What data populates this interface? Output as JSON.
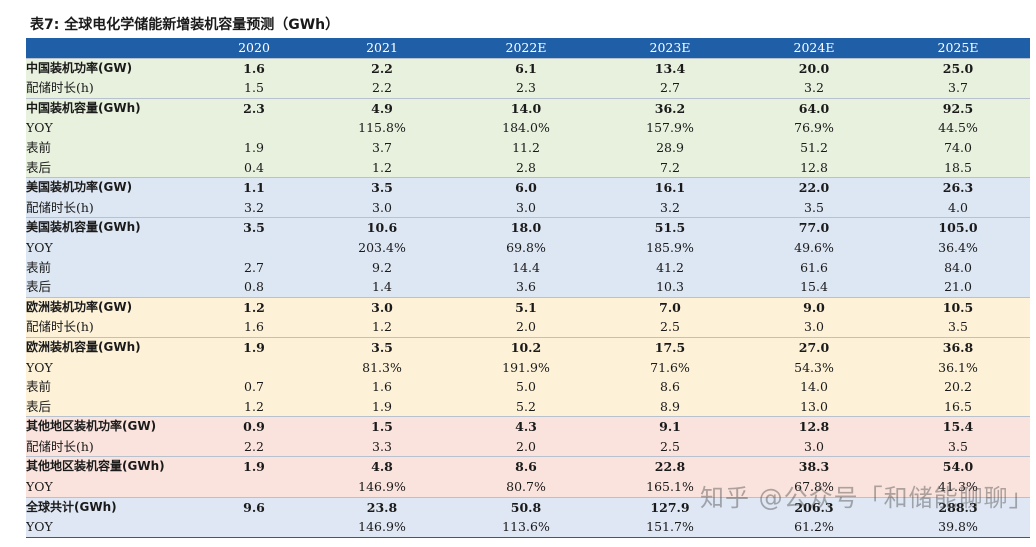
{
  "title": "表7: 全球电化学储能新增装机容量预测（GWh）",
  "columns": [
    "",
    "2020",
    "2021",
    "2022E",
    "2023E",
    "2024E",
    "2025E"
  ],
  "rows": [
    {
      "label": "中国装机功率(GW)",
      "values": [
        "1.6",
        "2.2",
        "6.1",
        "13.4",
        "20.0",
        "25.0"
      ]
    },
    {
      "label": "配储时长(h)",
      "values": [
        "1.5",
        "2.2",
        "2.3",
        "2.7",
        "3.2",
        "3.7"
      ]
    },
    {
      "label": "中国装机容量(GWh)",
      "values": [
        "2.3",
        "4.9",
        "14.0",
        "36.2",
        "64.0",
        "92.5"
      ]
    },
    {
      "label": "YOY",
      "values": [
        "",
        "115.8%",
        "184.0%",
        "157.9%",
        "76.9%",
        "44.5%"
      ]
    },
    {
      "label": "表前",
      "values": [
        "1.9",
        "3.7",
        "11.2",
        "28.9",
        "51.2",
        "74.0"
      ]
    },
    {
      "label": "表后",
      "values": [
        "0.4",
        "1.2",
        "2.8",
        "7.2",
        "12.8",
        "18.5"
      ]
    },
    {
      "label": "美国装机功率(GW)",
      "values": [
        "1.1",
        "3.5",
        "6.0",
        "16.1",
        "22.0",
        "26.3"
      ]
    },
    {
      "label": "配储时长(h)",
      "values": [
        "3.2",
        "3.0",
        "3.0",
        "3.2",
        "3.5",
        "4.0"
      ]
    },
    {
      "label": "美国装机容量(GWh)",
      "values": [
        "3.5",
        "10.6",
        "18.0",
        "51.5",
        "77.0",
        "105.0"
      ]
    },
    {
      "label": "YOY",
      "values": [
        "",
        "203.4%",
        "69.8%",
        "185.9%",
        "49.6%",
        "36.4%"
      ]
    },
    {
      "label": "表前",
      "values": [
        "2.7",
        "9.2",
        "14.4",
        "41.2",
        "61.6",
        "84.0"
      ]
    },
    {
      "label": "表后",
      "values": [
        "0.8",
        "1.4",
        "3.6",
        "10.3",
        "15.4",
        "21.0"
      ]
    },
    {
      "label": "欧洲装机功率(GW)",
      "values": [
        "1.2",
        "3.0",
        "5.1",
        "7.0",
        "9.0",
        "10.5"
      ]
    },
    {
      "label": "配储时长(h)",
      "values": [
        "1.6",
        "1.2",
        "2.0",
        "2.5",
        "3.0",
        "3.5"
      ]
    },
    {
      "label": "欧洲装机容量(GWh)",
      "values": [
        "1.9",
        "3.5",
        "10.2",
        "17.5",
        "27.0",
        "36.8"
      ]
    },
    {
      "label": "YOY",
      "values": [
        "",
        "81.3%",
        "191.9%",
        "71.6%",
        "54.3%",
        "36.1%"
      ]
    },
    {
      "label": "表前",
      "values": [
        "0.7",
        "1.6",
        "5.0",
        "8.6",
        "14.0",
        "20.2"
      ]
    },
    {
      "label": "表后",
      "values": [
        "1.2",
        "1.9",
        "5.2",
        "8.9",
        "13.0",
        "16.5"
      ]
    },
    {
      "label": "其他地区装机功率(GW)",
      "values": [
        "0.9",
        "1.5",
        "4.3",
        "9.1",
        "12.8",
        "15.4"
      ]
    },
    {
      "label": "配储时长(h)",
      "values": [
        "2.2",
        "3.3",
        "2.0",
        "2.5",
        "3.0",
        "3.5"
      ]
    },
    {
      "label": "其他地区装机容量(GWh)",
      "values": [
        "1.9",
        "4.8",
        "8.6",
        "22.8",
        "38.3",
        "54.0"
      ]
    },
    {
      "label": "YOY",
      "values": [
        "",
        "146.9%",
        "80.7%",
        "165.1%",
        "67.8%",
        "41.3%"
      ]
    },
    {
      "label": "全球共计(GWh)",
      "values": [
        "9.6",
        "23.8",
        "50.8",
        "127.9",
        "206.3",
        "288.3"
      ]
    },
    {
      "label": "YOY",
      "values": [
        "",
        "146.9%",
        "113.6%",
        "151.7%",
        "61.2%",
        "39.8%"
      ]
    }
  ],
  "watermark": "知乎 @公众号「和储能聊聊」",
  "group_colors": {
    "header": "#1f5fa8",
    "china": "#e7f1dd",
    "usa": "#dde6f3",
    "europe": "#fdf2d8",
    "other": "#fbe3dd",
    "global": "#dfe7f4"
  }
}
